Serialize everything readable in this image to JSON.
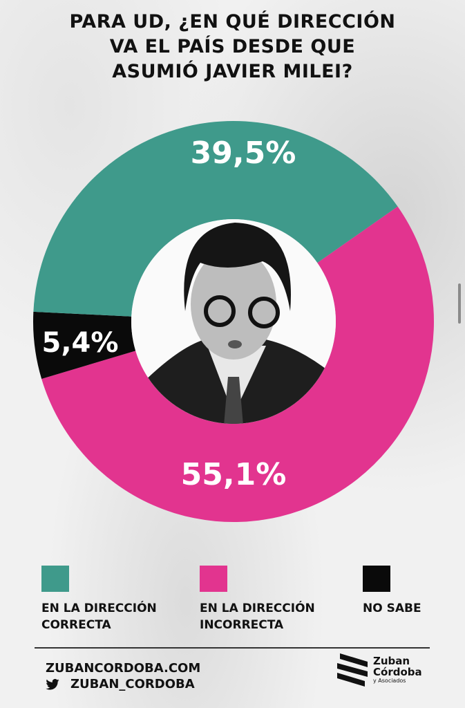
{
  "title_lines": [
    "PARA UD, ¿EN QUÉ DIRECCIÓN",
    "VA EL PAÍS DESDE QUE",
    "ASUMIÓ JAVIER MILEI?"
  ],
  "chart_data": {
    "type": "pie",
    "donut": true,
    "title": "PARA UD, ¿EN QUÉ DIRECCIÓN VA EL PAÍS DESDE QUE ASUMIÓ JAVIER MILEI?",
    "categories": [
      "EN LA DIRECCIÓN CORRECTA",
      "EN LA DIRECCIÓN INCORRECTA",
      "NO SABE"
    ],
    "values": [
      39.5,
      55.1,
      5.4
    ],
    "data_labels": [
      "39,5%",
      "55,1%",
      "5,4%"
    ],
    "colors": [
      "#3f9a8b",
      "#e2348f",
      "#0a0a0a"
    ],
    "legend_placement": "bottom",
    "center_image": "portrait photo"
  },
  "legend": [
    {
      "line1": "EN LA DIRECCIÓN",
      "line2": "CORRECTA",
      "color": "#3f9a8b"
    },
    {
      "line1": "EN LA DIRECCIÓN",
      "line2": "INCORRECTA",
      "color": "#e2348f"
    },
    {
      "line1": "NO SABE",
      "line2": "",
      "color": "#0a0a0a"
    }
  ],
  "footer": {
    "website": "ZUBANCORDOBA.COM",
    "twitter_icon": "twitter-bird-icon",
    "twitter": "ZUBAN_CORDOBA",
    "logo_line1": "Zuban",
    "logo_line2": "Córdoba",
    "logo_line3": "y Asociados"
  }
}
